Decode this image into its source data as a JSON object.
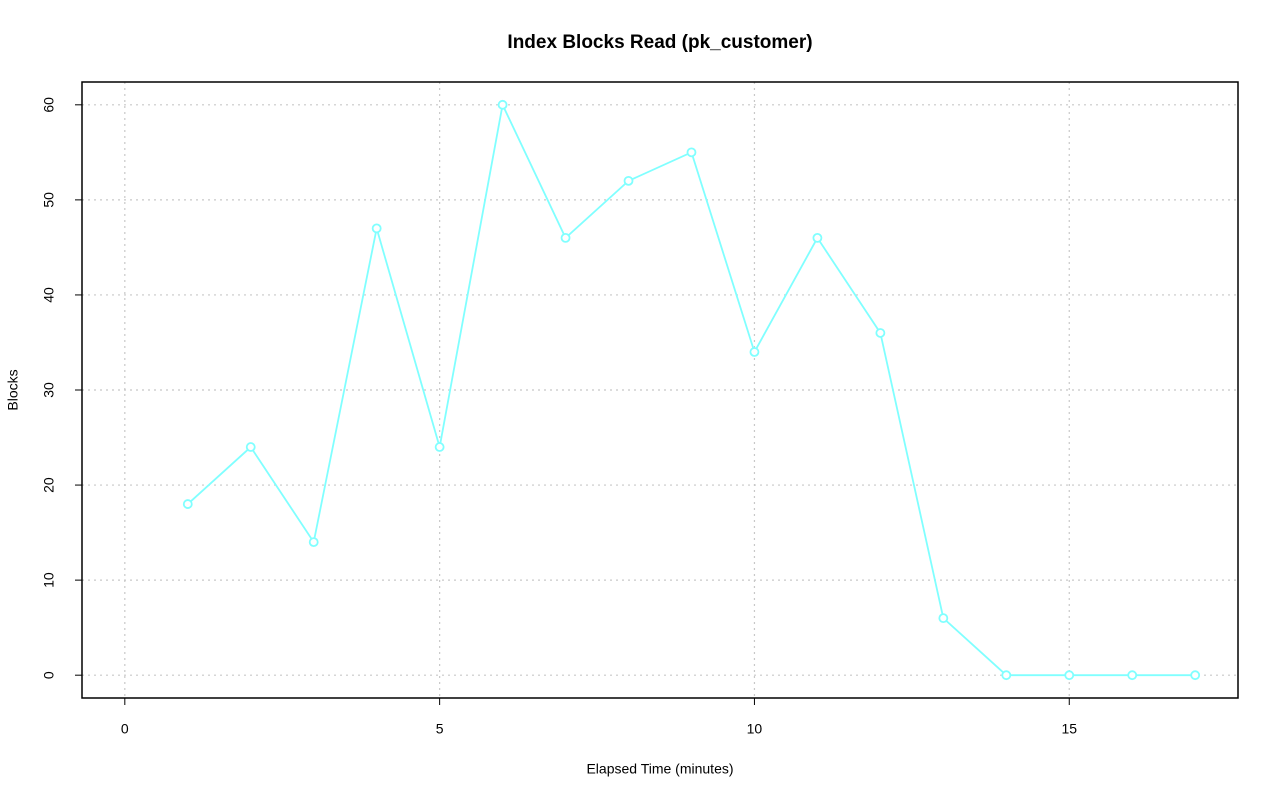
{
  "chart_data": {
    "type": "line",
    "title": "Index Blocks Read (pk_customer)",
    "x_label": "Elapsed Time (minutes)",
    "y_label": "Blocks",
    "x": [
      1,
      2,
      3,
      4,
      5,
      6,
      7,
      8,
      9,
      10,
      11,
      12,
      13,
      14,
      15,
      16,
      17
    ],
    "values": [
      18,
      24,
      14,
      47,
      24,
      60,
      46,
      52,
      55,
      34,
      46,
      36,
      6,
      0,
      0,
      0,
      0
    ],
    "color": "#80ffff",
    "xlim": [
      -0.68,
      17.68
    ],
    "xticks": [
      0,
      5,
      10,
      15
    ],
    "ylim": [
      -2.4,
      62.4
    ],
    "yticks": [
      0,
      10,
      20,
      30,
      40,
      50,
      60
    ],
    "grid": true
  }
}
